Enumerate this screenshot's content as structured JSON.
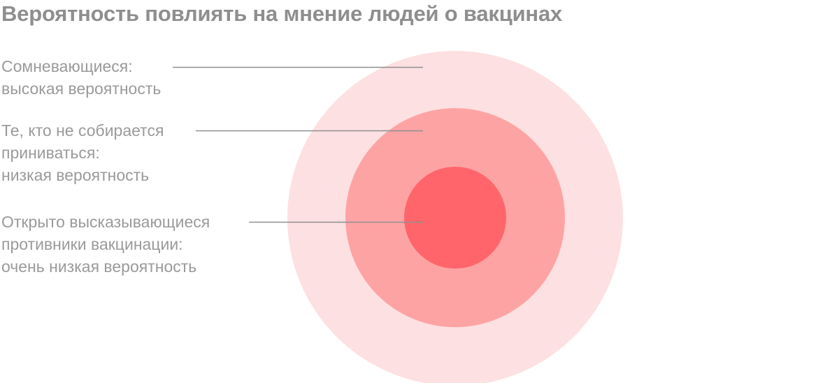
{
  "title": "Вероятность повлиять на мнение людей о вакцинах",
  "colors": {
    "outer": "#fde0e1",
    "middle": "#fea3a4",
    "inner": "#ff656a",
    "text": "#9a9a9a",
    "line": "#8f8f8f"
  },
  "rings": [
    {
      "id": "outer",
      "label": "Сомневающиеся:\nвысокая вероятность"
    },
    {
      "id": "middle",
      "label": "Те, кто не собирается\nприниваться:\nнизкая вероятность"
    },
    {
      "id": "inner",
      "label": "Открыто высказывающиеся\nпротивники вакцинации:\nочень низкая вероятность"
    }
  ]
}
